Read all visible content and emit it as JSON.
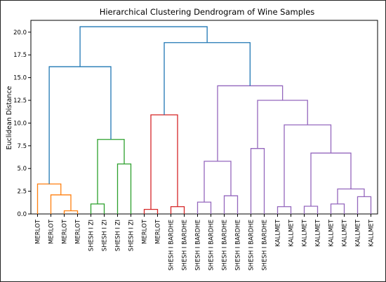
{
  "chart_data": {
    "type": "dendrogram",
    "title": "Hierarchical Clustering Dendrogram of Wine Samples",
    "xlabel": "",
    "ylabel": "Euclidean Distance",
    "ylim": [
      0,
      21.3
    ],
    "yticks": [
      "0.0",
      "2.5",
      "5.0",
      "7.5",
      "10.0",
      "12.5",
      "15.0",
      "17.5",
      "20.0"
    ],
    "grid": false,
    "leaves": [
      "MERLOT",
      "MERLOT",
      "MERLOT",
      "MERLOT",
      "SHESH I ZI",
      "SHESH I ZI",
      "SHESH I ZI",
      "SHESH I ZI",
      "MERLOT",
      "MERLOT",
      "SHESH I BARDHE",
      "SHESH I BARDHE",
      "SHESH I BARDHE",
      "SHESH I BARDHE",
      "SHESH I BARDHE",
      "SHESH I BARDHE",
      "SHESH I BARDHE",
      "SHESH I BARDHE",
      "KALLMET",
      "KALLMET",
      "KALLMET",
      "KALLMET",
      "KALLMET",
      "KALLMET",
      "KALLMET",
      "KALLMET"
    ],
    "colors": {
      "c1": "#ff7f0e",
      "c2": "#2ca02c",
      "c3": "#d62728",
      "c4": "#9467bd",
      "above": "#1f77b4"
    },
    "links": [
      {
        "a": "L2",
        "b": "L3",
        "h": 0.35,
        "c": "c1"
      },
      {
        "a": "L1",
        "b": "N0",
        "h": 2.1,
        "c": "c1"
      },
      {
        "a": "L0",
        "b": "N1",
        "h": 3.3,
        "c": "c1"
      },
      {
        "a": "L4",
        "b": "L5",
        "h": 1.1,
        "c": "c2"
      },
      {
        "a": "L6",
        "b": "L7",
        "h": 5.5,
        "c": "c2"
      },
      {
        "a": "N3",
        "b": "N4",
        "h": 8.2,
        "c": "c2"
      },
      {
        "a": "N2",
        "b": "N5",
        "h": 16.2,
        "c": "above"
      },
      {
        "a": "L8",
        "b": "L9",
        "h": 0.5,
        "c": "c3"
      },
      {
        "a": "L10",
        "b": "L11",
        "h": 0.8,
        "c": "c3"
      },
      {
        "a": "N7",
        "b": "N8",
        "h": 10.9,
        "c": "c3"
      },
      {
        "a": "L12",
        "b": "L13",
        "h": 1.3,
        "c": "c4"
      },
      {
        "a": "L14",
        "b": "L15",
        "h": 2.0,
        "c": "c4"
      },
      {
        "a": "N10",
        "b": "N11",
        "h": 5.8,
        "c": "c4"
      },
      {
        "a": "L16",
        "b": "L17",
        "h": 7.2,
        "c": "c4"
      },
      {
        "a": "L18",
        "b": "L19",
        "h": 0.8,
        "c": "c4"
      },
      {
        "a": "L20",
        "b": "L21",
        "h": 0.85,
        "c": "c4"
      },
      {
        "a": "L22",
        "b": "L23",
        "h": 1.1,
        "c": "c4"
      },
      {
        "a": "L24",
        "b": "L25",
        "h": 1.9,
        "c": "c4"
      },
      {
        "a": "N16",
        "b": "N17",
        "h": 2.75,
        "c": "c4"
      },
      {
        "a": "N15",
        "b": "N18",
        "h": 6.7,
        "c": "c4"
      },
      {
        "a": "N14",
        "b": "N19",
        "h": 9.8,
        "c": "c4"
      },
      {
        "a": "N13",
        "b": "N20",
        "h": 12.5,
        "c": "c4"
      },
      {
        "a": "N12",
        "b": "N21",
        "h": 14.1,
        "c": "c4"
      },
      {
        "a": "N9",
        "b": "N22",
        "h": 18.85,
        "c": "above"
      },
      {
        "a": "N6",
        "b": "N23",
        "h": 20.6,
        "c": "above"
      }
    ]
  }
}
